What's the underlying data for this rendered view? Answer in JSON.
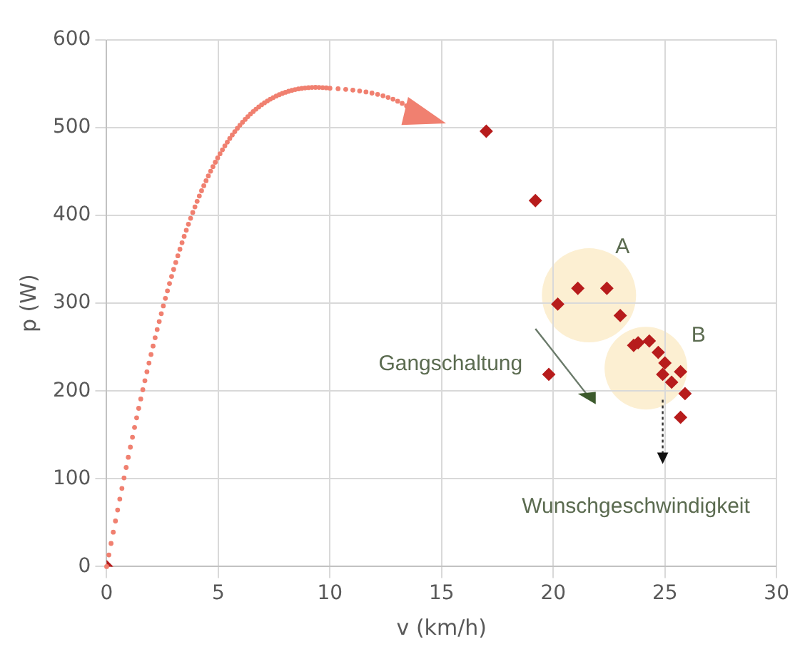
{
  "chart_data": {
    "type": "scatter",
    "xlabel": "v (km/h)",
    "ylabel": "p (W)",
    "x": [
      0,
      17.0,
      19.2,
      20.2,
      21.1,
      22.4,
      23.0,
      19.8,
      23.6,
      23.8,
      24.3,
      24.7,
      25.0,
      24.9,
      25.7,
      25.3,
      25.9,
      25.7
    ],
    "values": [
      0,
      496,
      417,
      299,
      317,
      317,
      286,
      219,
      252,
      255,
      257,
      244,
      232,
      219,
      222,
      210,
      197,
      170
    ],
    "color": "#b71c1c",
    "marker": "diamond",
    "xlim": [
      0,
      30
    ],
    "xticks": [
      0,
      5,
      10,
      15,
      20,
      25,
      30
    ],
    "ylim": [
      0,
      600
    ],
    "yticks": [
      0,
      100,
      200,
      300,
      400,
      500,
      600
    ],
    "grid": true,
    "legend": false,
    "annotations": [
      "A",
      "B",
      "Gangschaltung",
      "Wunschgeschwindigkeit"
    ]
  }
}
